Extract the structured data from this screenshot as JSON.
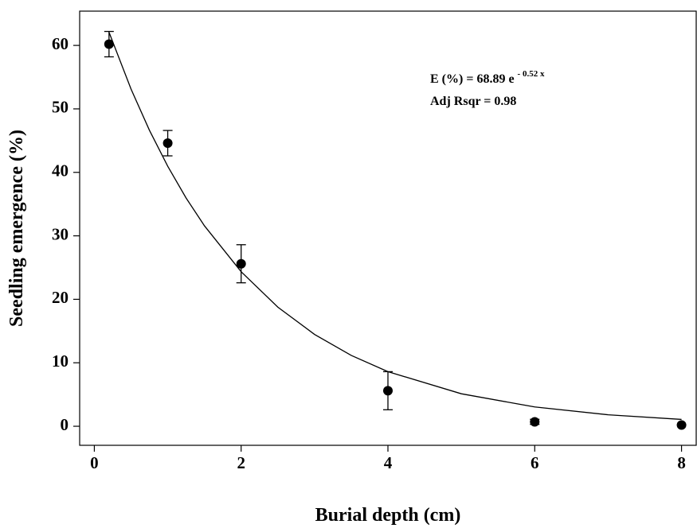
{
  "chart_data": {
    "type": "scatter",
    "x_label": "Burial depth (cm)",
    "y_label": "Seedling emergence (%)",
    "xlim": [
      -0.2,
      8.2
    ],
    "ylim": [
      -3,
      65.4
    ],
    "xticks": [
      0,
      2,
      4,
      6,
      8
    ],
    "yticks": [
      0,
      10,
      20,
      30,
      40,
      50,
      60
    ],
    "series": [
      {
        "x": [
          0.2,
          1,
          2,
          4,
          6,
          8
        ],
        "values": [
          60.2,
          44.6,
          25.6,
          5.6,
          0.7,
          0.2
        ],
        "errors": [
          2,
          2,
          3,
          3,
          0.4,
          0
        ],
        "color": "#000000"
      }
    ],
    "fit": {
      "x": [
        0.2,
        0.5,
        0.75,
        1,
        1.25,
        1.5,
        2,
        2.5,
        3,
        3.5,
        4,
        5,
        6,
        7,
        8
      ],
      "values": [
        62.08,
        53.12,
        46.65,
        40.96,
        35.96,
        31.58,
        24.35,
        18.77,
        14.47,
        11.16,
        8.6,
        5.12,
        3.04,
        1.81,
        1.08
      ],
      "color": "#000000"
    },
    "annotation": {
      "equation": "E (%) = 68.89 e",
      "exponent": "- 0.52 x",
      "r2": "Adj Rsqr = 0.98"
    }
  }
}
